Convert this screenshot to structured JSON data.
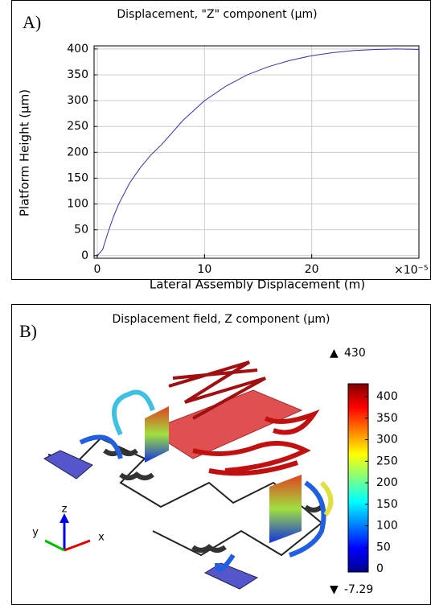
{
  "chart_data": {
    "type": "line",
    "panel_label": "A)",
    "title": "Displacement, \"Z\" component (µm)",
    "x_label": "Lateral Assembly Displacement (m)",
    "y_label": "Platform Height (µm)",
    "x_multiplier": "×10⁻⁵",
    "x": [
      0,
      0.5,
      1,
      1.5,
      2,
      3,
      4,
      5,
      6,
      8,
      10,
      12,
      14,
      16,
      18,
      20,
      22,
      24,
      26,
      28,
      30
    ],
    "series": [
      {
        "color": "#3333aa",
        "values": [
          0,
          12,
          45,
          75,
          100,
          140,
          170,
          195,
          215,
          262,
          300,
          328,
          350,
          366,
          378,
          387,
          393,
          397,
          399,
          400,
          399
        ]
      }
    ],
    "xlim": [
      -0.3,
      30
    ],
    "ylim": [
      -5,
      406
    ],
    "xticks": [
      0,
      10,
      20
    ],
    "yticks": [
      0,
      50,
      100,
      150,
      200,
      250,
      300,
      350,
      400
    ],
    "grid": true
  },
  "figure_b": {
    "panel_label": "B)",
    "title": "Displacement field, Z component (µm)",
    "max": 430,
    "min": -7.29,
    "colorbar_ticks": [
      0,
      50,
      100,
      150,
      200,
      250,
      300,
      350,
      400
    ],
    "axes": {
      "x": "x",
      "y": "y",
      "z": "z"
    }
  }
}
